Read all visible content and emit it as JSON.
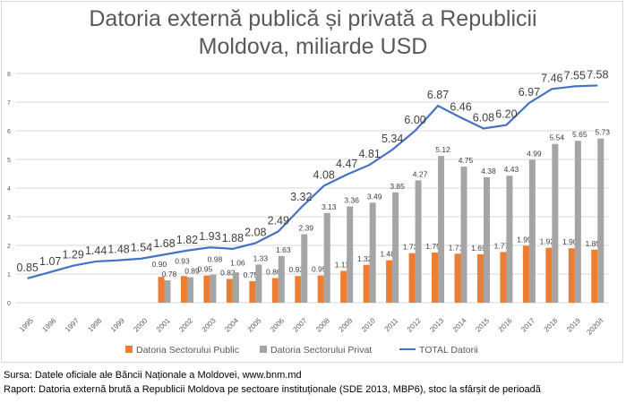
{
  "chart_data": {
    "type": "bar+line",
    "title_line1": "Datoria externă publică și privată a Republicii",
    "title_line2": "Moldova, miliarde USD",
    "categories": [
      "1995",
      "1996",
      "1997",
      "1998",
      "1999",
      "2000",
      "2001",
      "2002",
      "2003",
      "2004",
      "2005",
      "2006",
      "2007",
      "2008",
      "2009",
      "2010",
      "2011",
      "2012",
      "2013",
      "2014",
      "2015",
      "2016",
      "2017",
      "2018",
      "2019",
      "2020/I"
    ],
    "ylim": [
      0,
      8
    ],
    "yticks": [
      "0",
      "1",
      "2",
      "3",
      "4",
      "5",
      "6",
      "7",
      "8"
    ],
    "grid": true,
    "legend_position": "bottom",
    "series": [
      {
        "name": "Datoria Sectorului Public",
        "type": "bar",
        "color": "#ED7D31",
        "values": [
          null,
          null,
          null,
          null,
          null,
          null,
          0.9,
          0.93,
          0.95,
          0.83,
          0.75,
          0.86,
          0.93,
          0.95,
          1.11,
          1.32,
          1.48,
          1.73,
          1.75,
          1.71,
          1.69,
          1.77,
          1.99,
          1.92,
          1.9,
          1.85
        ]
      },
      {
        "name": "Datoria Sectorului Privat",
        "type": "bar",
        "color": "#A5A5A5",
        "values": [
          null,
          null,
          null,
          null,
          null,
          null,
          0.78,
          0.89,
          0.98,
          1.06,
          1.33,
          1.63,
          2.39,
          3.13,
          3.36,
          3.49,
          3.85,
          4.27,
          5.12,
          4.75,
          4.38,
          4.43,
          4.99,
          5.54,
          5.65,
          5.73
        ]
      },
      {
        "name": "TOTAL Datorii",
        "type": "line",
        "color": "#4472C4",
        "values": [
          0.85,
          1.07,
          1.29,
          1.44,
          1.48,
          1.54,
          1.68,
          1.82,
          1.93,
          1.88,
          2.08,
          2.49,
          3.32,
          4.08,
          4.47,
          4.81,
          5.34,
          6.0,
          6.87,
          6.46,
          6.08,
          6.2,
          6.97,
          7.46,
          7.55,
          7.58
        ]
      }
    ]
  },
  "footer": {
    "source": "Sursa: Datele oficiale ale Băncii Naționale a Moldovei, www.bnm.md",
    "report": "Raport: Datoria externă brută a Republicii Moldova pe sectoare instituționale (SDE 2013, MBP6), stoc la sfârșit de perioadă"
  }
}
